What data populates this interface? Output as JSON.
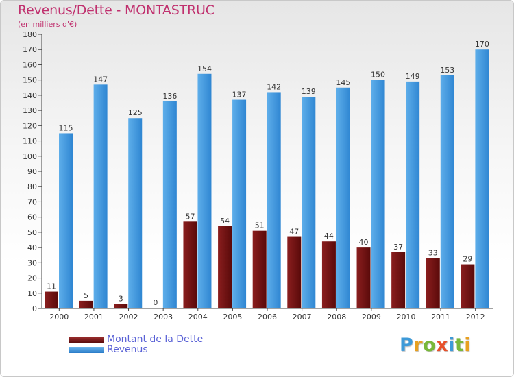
{
  "title": "Revenus/Dette - MONTASTRUC",
  "subtitle": "(en milliers d'€)",
  "logo": [
    "P",
    "r",
    "o",
    "x",
    "i",
    "t",
    "i"
  ],
  "logo_colors": [
    "#3d9ad8",
    "#e8a020",
    "#79b83a",
    "#e8502a",
    "#3d9ad8",
    "#79b83a",
    "#e8a020"
  ],
  "chart_data": {
    "type": "bar",
    "categories": [
      "2000",
      "2001",
      "2002",
      "2003",
      "2004",
      "2005",
      "2006",
      "2007",
      "2008",
      "2009",
      "2010",
      "2011",
      "2012"
    ],
    "series": [
      {
        "name": "Montant de la Dette",
        "color": "#7a1414",
        "values": [
          11,
          5,
          3,
          0,
          57,
          54,
          51,
          47,
          44,
          40,
          37,
          33,
          29
        ]
      },
      {
        "name": "Revenus",
        "color": "#3a92dc",
        "values": [
          115,
          147,
          125,
          136,
          154,
          137,
          142,
          139,
          145,
          150,
          149,
          153,
          170
        ]
      }
    ],
    "ylim": [
      0,
      180
    ],
    "ytick_step": 10,
    "grid": false,
    "legend": "bottom-left"
  }
}
